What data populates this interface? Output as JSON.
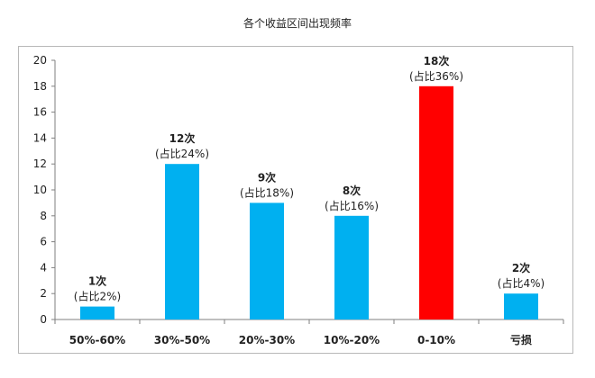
{
  "title": "各个收益区间出现频率",
  "chart_data": {
    "type": "bar",
    "title": "各个收益区间出现频率",
    "xlabel": "",
    "ylabel": "",
    "ylim": [
      0,
      20
    ],
    "yticks": [
      0,
      2,
      4,
      6,
      8,
      10,
      12,
      14,
      16,
      18,
      20
    ],
    "categories": [
      "50%-60%",
      "30%-50%",
      "20%-30%",
      "10%-20%",
      "0-10%",
      "亏损"
    ],
    "values": [
      1,
      12,
      9,
      8,
      18,
      2
    ],
    "count_labels": [
      "1次",
      "12次",
      "9次",
      "8次",
      "18次",
      "2次"
    ],
    "share_labels": [
      "(占比2%)",
      "(占比24%)",
      "(占比18%)",
      "(占比16%)",
      "(占比36%)",
      "(占比4%)"
    ],
    "bar_colors": [
      "#00b0f0",
      "#00b0f0",
      "#00b0f0",
      "#00b0f0",
      "#ff0000",
      "#00b0f0"
    ],
    "axis_color": "#7f7f7f",
    "grid": false,
    "legend": "none"
  }
}
